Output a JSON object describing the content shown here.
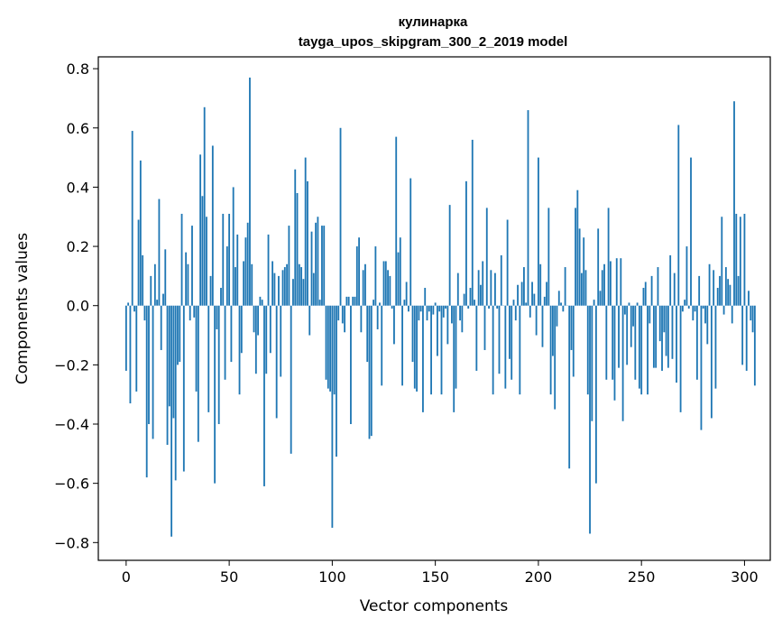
{
  "chart_data": {
    "type": "bar",
    "title": "кулинарка",
    "subtitle": "tayga_upos_skipgram_300_2_2019 model",
    "xlabel": "Vector components",
    "ylabel": "Components values",
    "xlim": [
      -13.5,
      312.5
    ],
    "ylim": [
      -0.86,
      0.84
    ],
    "xticks": [
      0,
      50,
      100,
      150,
      200,
      250,
      300
    ],
    "yticks": [
      -0.8,
      -0.6,
      -0.4,
      -0.2,
      0.0,
      0.2,
      0.4,
      0.6,
      0.8
    ],
    "ytick_labels": [
      "−0.8",
      "−0.6",
      "−0.4",
      "−0.2",
      "0.0",
      "0.2",
      "0.4",
      "0.6",
      "0.8"
    ],
    "bar_color": "#1f77b4",
    "values": [
      -0.22,
      0.01,
      -0.33,
      0.59,
      -0.02,
      -0.29,
      0.29,
      0.49,
      0.17,
      -0.05,
      -0.58,
      -0.4,
      0.1,
      -0.45,
      0.14,
      0.02,
      0.36,
      -0.15,
      0.04,
      0.19,
      -0.47,
      -0.34,
      -0.78,
      -0.38,
      -0.59,
      -0.2,
      -0.19,
      0.31,
      -0.56,
      0.18,
      0.14,
      -0.05,
      0.27,
      -0.04,
      -0.29,
      -0.46,
      0.51,
      0.37,
      0.67,
      0.3,
      -0.36,
      0.1,
      0.54,
      -0.6,
      -0.08,
      -0.4,
      0.06,
      0.31,
      -0.25,
      0.2,
      0.31,
      -0.19,
      0.4,
      0.13,
      0.24,
      -0.3,
      -0.16,
      0.15,
      0.23,
      0.28,
      0.77,
      0.14,
      -0.09,
      -0.23,
      -0.1,
      0.03,
      0.02,
      -0.61,
      -0.23,
      0.24,
      -0.16,
      0.15,
      0.11,
      -0.38,
      0.1,
      -0.24,
      0.12,
      0.13,
      0.14,
      0.27,
      -0.5,
      0.09,
      0.46,
      0.38,
      0.14,
      0.13,
      0.09,
      0.5,
      0.42,
      -0.1,
      0.25,
      0.11,
      0.28,
      0.3,
      0.02,
      0.27,
      0.27,
      -0.25,
      -0.28,
      -0.29,
      -0.75,
      -0.3,
      -0.51,
      -0.05,
      0.6,
      -0.06,
      -0.09,
      0.03,
      0.03,
      -0.4,
      0.03,
      0.03,
      0.2,
      0.23,
      -0.09,
      0.12,
      0.14,
      -0.19,
      -0.45,
      -0.44,
      0.02,
      0.2,
      -0.08,
      0.01,
      -0.27,
      0.15,
      0.15,
      0.12,
      0.1,
      -0.01,
      -0.13,
      0.57,
      0.18,
      0.23,
      -0.27,
      0.02,
      0.08,
      -0.02,
      0.43,
      -0.19,
      -0.28,
      -0.29,
      -0.05,
      -0.02,
      -0.36,
      0.06,
      -0.05,
      -0.02,
      -0.3,
      -0.03,
      0.01,
      -0.17,
      -0.02,
      -0.3,
      -0.04,
      -0.01,
      -0.13,
      0.34,
      -0.06,
      -0.36,
      -0.28,
      0.11,
      -0.05,
      -0.09,
      0.04,
      0.42,
      -0.01,
      0.06,
      0.56,
      0.02,
      -0.22,
      0.12,
      0.07,
      0.15,
      -0.15,
      0.33,
      -0.01,
      0.12,
      -0.3,
      0.11,
      -0.01,
      -0.23,
      0.17,
      0.0,
      -0.28,
      0.29,
      -0.18,
      -0.25,
      0.02,
      -0.05,
      0.07,
      -0.3,
      0.08,
      0.13,
      0.01,
      0.66,
      -0.04,
      0.08,
      0.04,
      -0.1,
      0.5,
      0.14,
      -0.14,
      0.03,
      0.08,
      0.33,
      -0.3,
      -0.17,
      -0.35,
      -0.07,
      0.05,
      0.01,
      -0.02,
      0.13,
      0.0,
      -0.55,
      -0.15,
      -0.24,
      0.33,
      0.39,
      0.26,
      0.11,
      0.23,
      0.12,
      -0.3,
      -0.77,
      -0.39,
      0.02,
      -0.6,
      0.26,
      0.05,
      0.12,
      0.14,
      -0.25,
      0.33,
      0.15,
      -0.25,
      -0.32,
      0.16,
      -0.21,
      0.16,
      -0.39,
      -0.03,
      -0.2,
      0.01,
      -0.14,
      -0.07,
      -0.25,
      0.01,
      -0.28,
      -0.3,
      0.06,
      0.08,
      -0.3,
      -0.06,
      0.1,
      -0.21,
      -0.21,
      0.13,
      -0.12,
      -0.22,
      -0.09,
      -0.17,
      -0.21,
      0.17,
      -0.18,
      0.11,
      -0.26,
      0.61,
      -0.36,
      -0.02,
      0.02,
      0.2,
      -0.01,
      0.5,
      -0.05,
      -0.02,
      -0.25,
      0.1,
      -0.42,
      -0.01,
      -0.06,
      -0.13,
      0.14,
      -0.38,
      0.12,
      -0.28,
      0.06,
      0.1,
      0.3,
      -0.03,
      0.13,
      0.09,
      0.07,
      -0.06,
      0.69,
      0.31,
      0.1,
      0.3,
      -0.2,
      0.31,
      -0.22,
      0.05,
      -0.05,
      -0.09,
      -0.27
    ]
  }
}
